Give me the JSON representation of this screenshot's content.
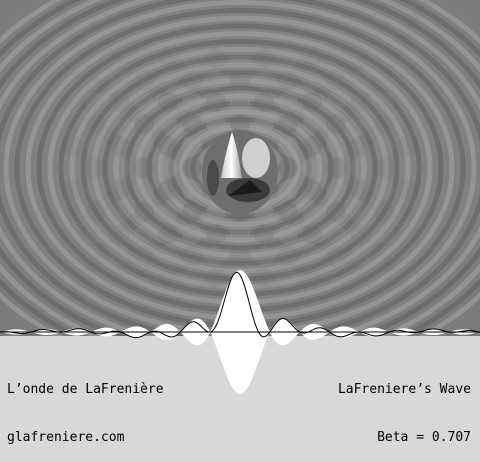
{
  "window": {
    "title_left": "L’onde de LaFrenière",
    "site": "glafreniere.com",
    "title_right": "LaFreniere’s Wave",
    "beta_label": "Beta = 0.707"
  },
  "simulation": {
    "beta": 0.707,
    "background_color": "#808080",
    "panel_color": "#d8d8d8",
    "wave_fill_color": "#ffffff",
    "wave_line_color": "#000000",
    "axis_color": "#000000"
  }
}
